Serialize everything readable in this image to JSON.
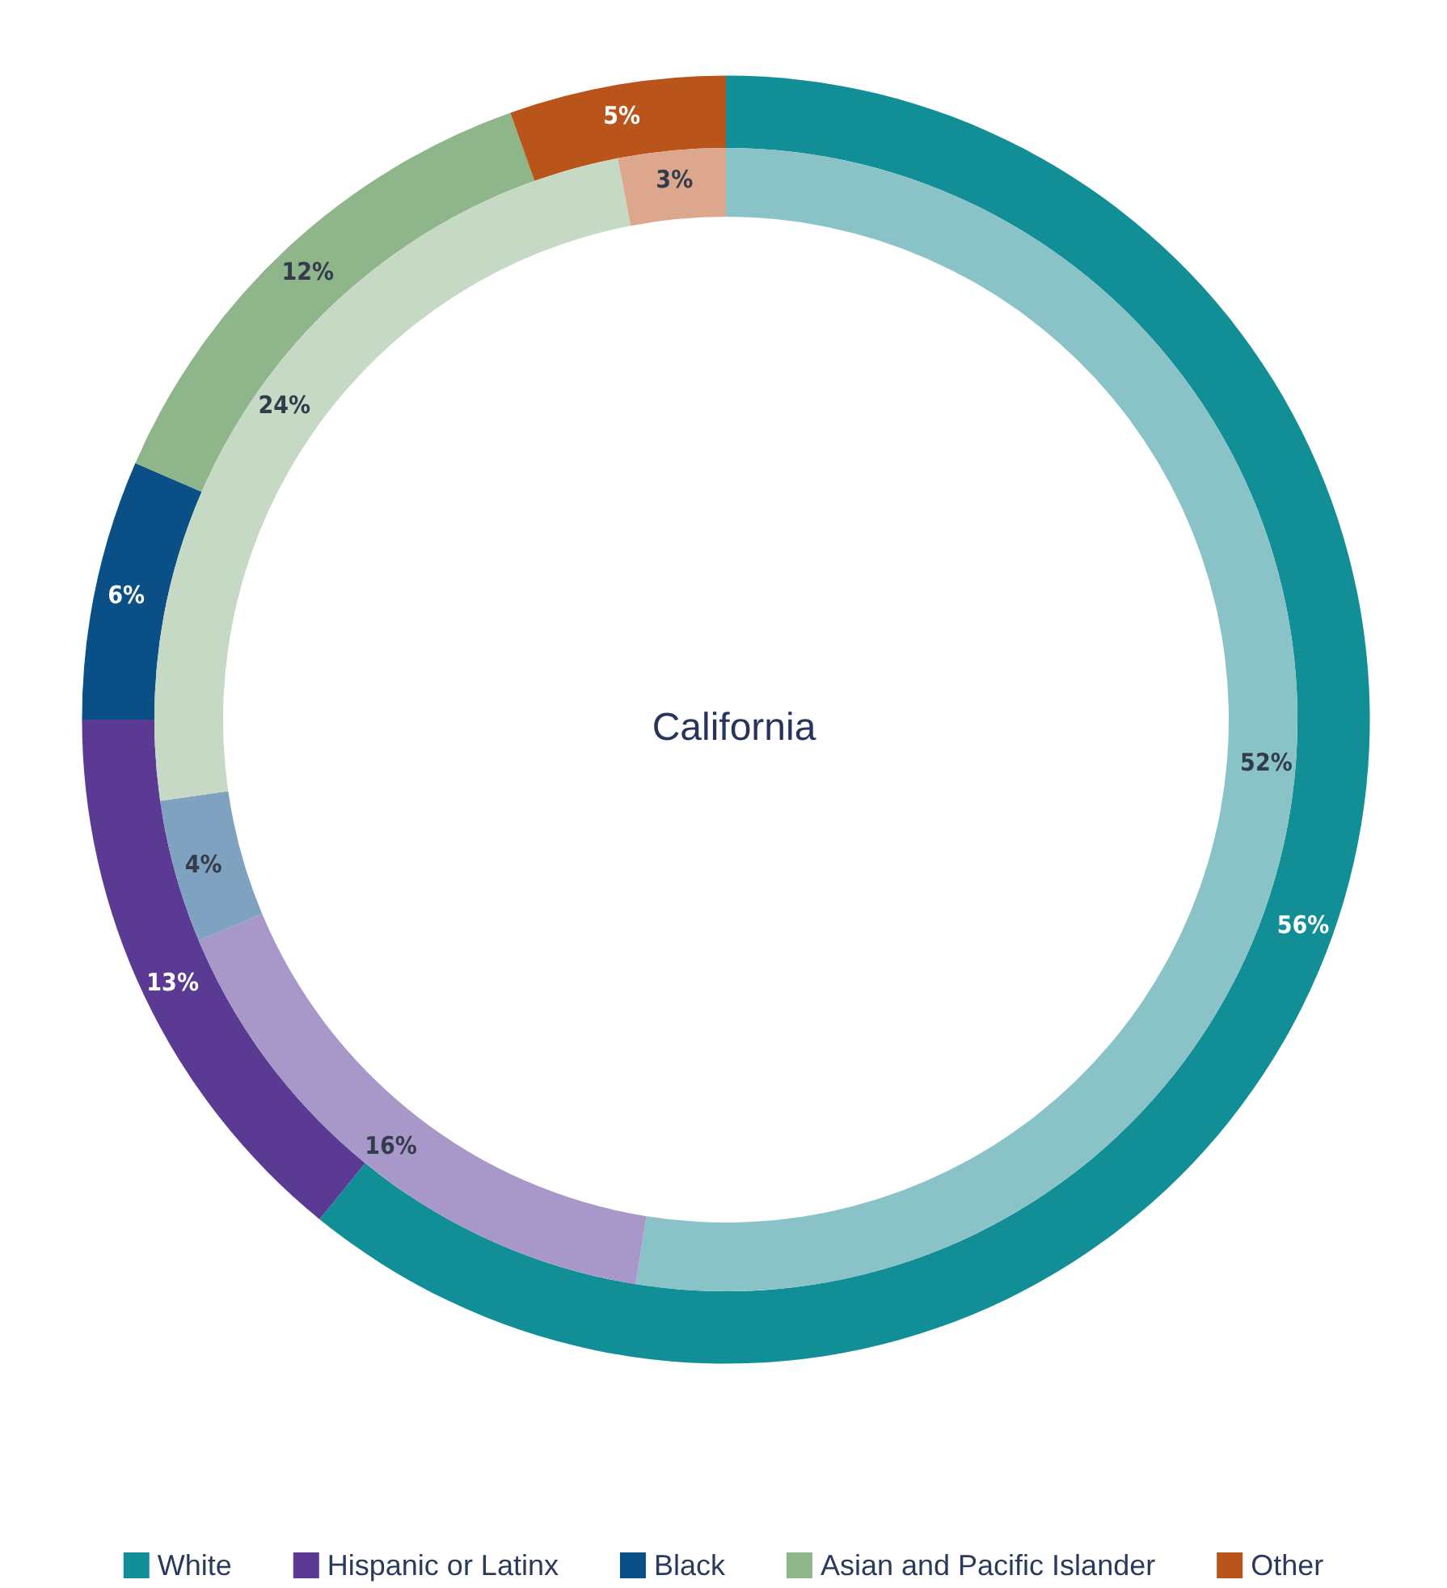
{
  "chart_data": {
    "type": "donut",
    "title": "California",
    "categories": [
      "White",
      "Hispanic or Latinx",
      "Black",
      "Asian and Pacific Islander",
      "Other"
    ],
    "series": [
      {
        "values": [
          56,
          13,
          6,
          12,
          5
        ],
        "value_labels": [
          "56%",
          "13%",
          "6%",
          "12%",
          "5%"
        ],
        "colors": [
          "#128e96",
          "#5b3a94",
          "#0a4f86",
          "#8fb58a",
          "#b9541a"
        ]
      },
      {
        "values": [
          52,
          16,
          4,
          24,
          3
        ],
        "value_labels": [
          "52%",
          "16%",
          "4%",
          "24%",
          "3%"
        ],
        "colors": [
          "#89c3c8",
          "#a898c9",
          "#7ea2c0",
          "#c6d9c4",
          "#dca78c"
        ]
      }
    ],
    "legend": "bottom"
  }
}
